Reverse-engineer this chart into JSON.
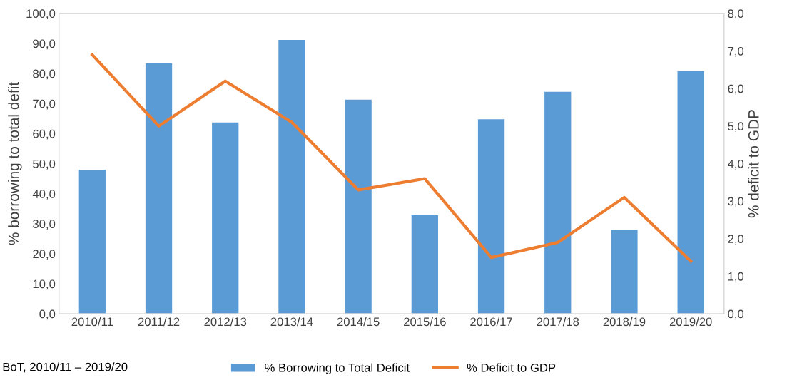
{
  "chart_data": {
    "type": "bar",
    "ylabel": "% borrowing to total defit",
    "y2label": "% deficit to GDP",
    "categories": [
      "2010/11",
      "2011/12",
      "2012/13",
      "2013/14",
      "2014/15",
      "2015/16",
      "2016/17",
      "2017/18",
      "2018/19",
      "2019/20"
    ],
    "series": [
      {
        "name": "% Borrowing to Total Deficit",
        "color": "#5b9bd5",
        "values": [
          48.0,
          83.4,
          63.7,
          91.2,
          71.3,
          32.8,
          64.8,
          73.9,
          28.0,
          80.8
        ]
      },
      {
        "name": "% Deficit to GDP",
        "type": "line",
        "axis": "y2",
        "color": "#ed7d31",
        "values": [
          6.9,
          5.0,
          6.2,
          5.1,
          3.3,
          3.6,
          1.5,
          1.9,
          3.1,
          1.4
        ]
      }
    ],
    "ylim": [
      0,
      100
    ],
    "yticks": [
      {
        "value": 0,
        "label": "0,0"
      },
      {
        "value": 10,
        "label": "10,0"
      },
      {
        "value": 20,
        "label": "20,0"
      },
      {
        "value": 30,
        "label": "30,0"
      },
      {
        "value": 40,
        "label": "40,0"
      },
      {
        "value": 50,
        "label": "50,0"
      },
      {
        "value": 60,
        "label": "60,0"
      },
      {
        "value": 70,
        "label": "70,0"
      },
      {
        "value": 80,
        "label": "80,0"
      },
      {
        "value": 90,
        "label": "90,0"
      },
      {
        "value": 100,
        "label": "100,0"
      }
    ],
    "y2lim": [
      0,
      8
    ],
    "y2ticks": [
      {
        "value": 0,
        "label": "0,0"
      },
      {
        "value": 1,
        "label": "1,0"
      },
      {
        "value": 2,
        "label": "2,0"
      },
      {
        "value": 3,
        "label": "3,0"
      },
      {
        "value": 4,
        "label": "4,0"
      },
      {
        "value": 5,
        "label": "5,0"
      },
      {
        "value": 6,
        "label": "6,0"
      },
      {
        "value": 7,
        "label": "7,0"
      },
      {
        "value": 8,
        "label": "8,0"
      }
    ],
    "legend": "bottom",
    "grid": false,
    "annotations": [
      "BoT, 2010/11 – 2019/20"
    ]
  }
}
